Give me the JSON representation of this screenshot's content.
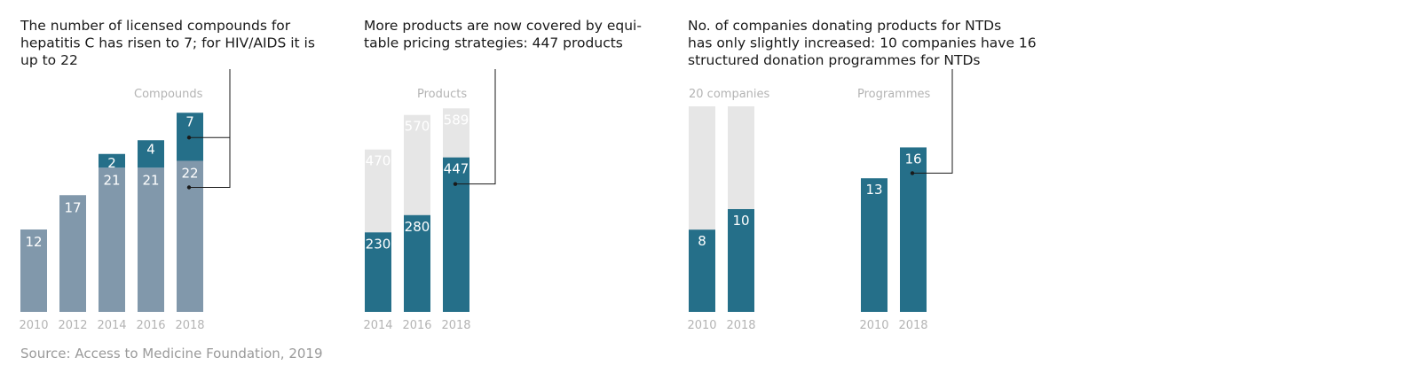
{
  "colors": {
    "dark": "#256f89",
    "mid": "#8198ab",
    "light": "#e6e6e6",
    "text": "#1a1a1a",
    "muted": "#b4b4b4"
  },
  "source": "Source: Access to Medicine Foundation, 2019",
  "chart_data": [
    {
      "type": "bar",
      "stacked": true,
      "title_lines": [
        "The number of licensed compounds for",
        "hepatitis C has risen to 7; for HIV/AIDS it is",
        "up to 22"
      ],
      "unit_label": "Compounds",
      "categories": [
        "2010",
        "2012",
        "2014",
        "2016",
        "2018"
      ],
      "series": [
        {
          "key": "hiv",
          "color": "mid",
          "values": [
            12,
            17,
            21,
            21,
            22
          ]
        },
        {
          "key": "hepc",
          "color": "dark",
          "values": [
            null,
            null,
            2,
            4,
            7
          ]
        }
      ],
      "ylim": [
        0,
        30
      ],
      "grid": false,
      "legend": "none"
    },
    {
      "type": "bar",
      "stacked": false,
      "title_lines": [
        "More products are now covered by equi-",
        "table pricing strategies: 447 products"
      ],
      "unit_label": "Products",
      "categories": [
        "2014",
        "2016",
        "2018"
      ],
      "series": [
        {
          "key": "total",
          "color": "light",
          "values": [
            470,
            570,
            589
          ]
        },
        {
          "key": "covered",
          "color": "dark",
          "values": [
            230,
            280,
            447
          ]
        }
      ],
      "ylim": [
        0,
        600
      ],
      "grid": false,
      "legend": "none"
    },
    {
      "type": "bar",
      "stacked": false,
      "title_lines": [
        "No. of companies donating products for NTDs",
        "has only slightly increased: 10 companies have 16",
        "structured donation programmes for NTDs"
      ],
      "unit_label": "20 companies",
      "categories": [
        "2010",
        "2018"
      ],
      "series": [
        {
          "key": "all",
          "color": "light",
          "values": [
            20,
            20
          ]
        },
        {
          "key": "donating",
          "color": "dark",
          "values": [
            8,
            10
          ]
        }
      ],
      "ylim": [
        0,
        20
      ],
      "grid": false,
      "legend": "none"
    },
    {
      "type": "bar",
      "stacked": false,
      "title_lines": [],
      "unit_label": "Programmes",
      "categories": [
        "2010",
        "2018"
      ],
      "series": [
        {
          "key": "programmes",
          "color": "dark",
          "values": [
            13,
            16
          ]
        }
      ],
      "ylim": [
        0,
        20
      ],
      "grid": false,
      "legend": "none"
    }
  ]
}
